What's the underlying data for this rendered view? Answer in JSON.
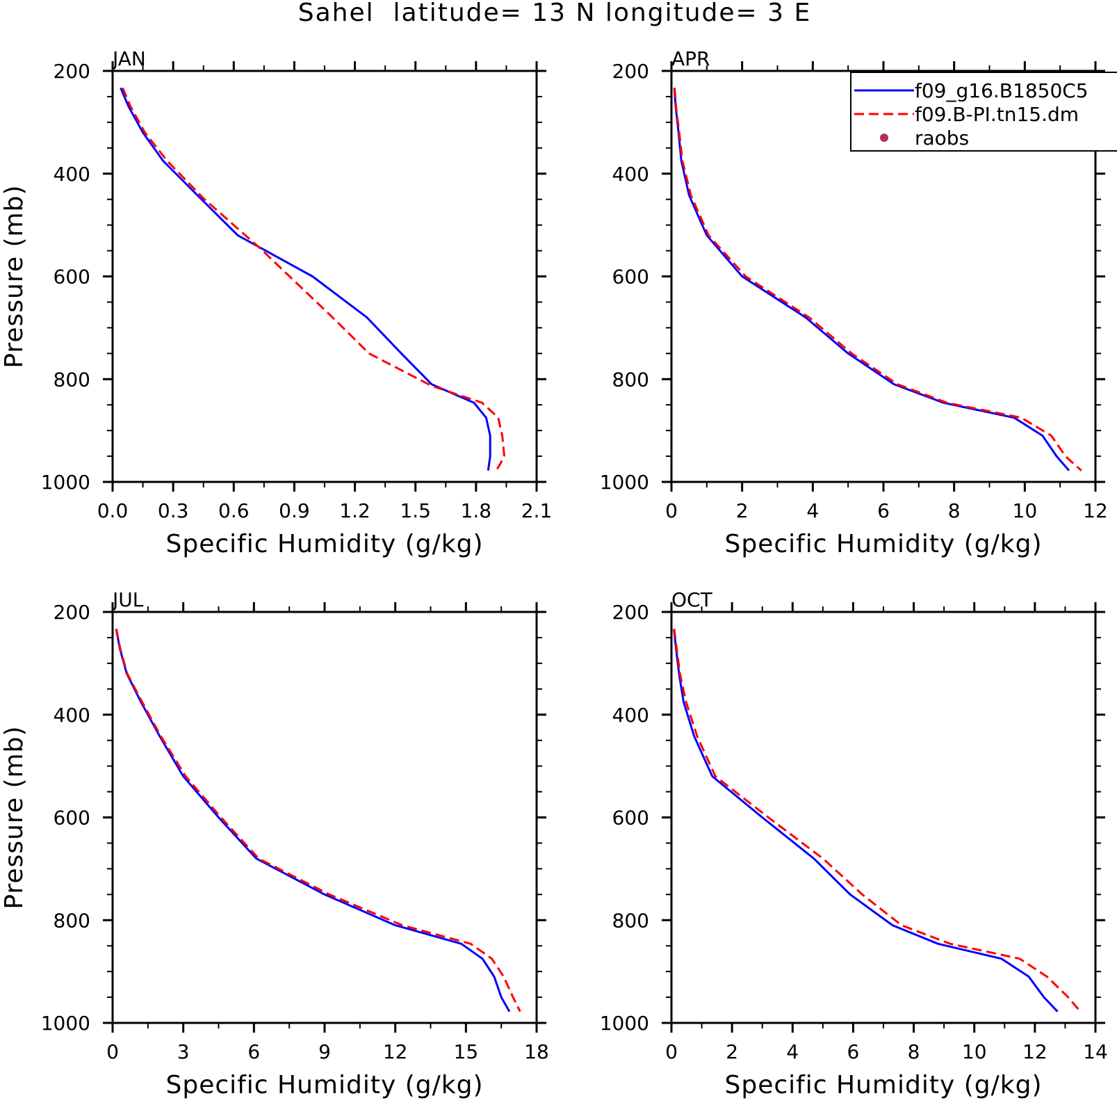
{
  "title": "Sahel  latitude= 13 N longitude= 3 E",
  "colors": {
    "model1": "#0000ff",
    "model2": "#ff0000",
    "raobs": "#b03060",
    "axis": "#000000"
  },
  "legend": {
    "entries": [
      {
        "label": "f09_g16.B1850C5",
        "style": "solid",
        "color": "#0000ff"
      },
      {
        "label": "f09.B-PI.tn15.dm",
        "style": "dashed",
        "color": "#ff0000"
      },
      {
        "label": "raobs",
        "style": "dot",
        "color": "#b03060"
      }
    ],
    "placement": "top-right of APR panel"
  },
  "chart_data": [
    {
      "type": "line",
      "title": "JAN",
      "xlabel": "Specific Humidity (g/kg)",
      "ylabel": "Pressure (mb)",
      "xlim": [
        0,
        2.1
      ],
      "ylim": [
        1000,
        200
      ],
      "xticks": [
        "0.0",
        "0.3",
        "0.6",
        "0.9",
        "1.2",
        "1.5",
        "1.8",
        "2.1"
      ],
      "xtick_values": [
        0,
        0.3,
        0.6,
        0.9,
        1.2,
        1.5,
        1.8,
        2.1
      ],
      "yticks": [
        "200",
        "400",
        "600",
        "800",
        "1000"
      ],
      "ytick_values": [
        200,
        400,
        600,
        800,
        1000
      ],
      "series": [
        {
          "name": "f09_g16.B1850C5",
          "style": "solid",
          "x": [
            0.04,
            0.08,
            0.15,
            0.25,
            0.42,
            0.62,
            0.99,
            1.26,
            1.43,
            1.58,
            1.79,
            1.85,
            1.87,
            1.87,
            1.86
          ],
          "y": [
            233,
            270,
            320,
            375,
            442,
            520,
            600,
            680,
            750,
            810,
            846,
            875,
            910,
            950,
            978
          ]
        },
        {
          "name": "f09.B-PI.tn15.dm",
          "style": "dashed",
          "x": [
            0.05,
            0.09,
            0.16,
            0.27,
            0.45,
            0.73,
            1.09,
            1.27,
            1.58,
            1.83,
            1.91,
            1.93,
            1.94,
            1.92,
            1.9
          ],
          "y": [
            233,
            270,
            320,
            375,
            448,
            545,
            680,
            750,
            813,
            846,
            875,
            910,
            950,
            965,
            978
          ]
        }
      ]
    },
    {
      "type": "line",
      "title": "APR",
      "xlabel": "Specific Humidity (g/kg)",
      "ylabel": "",
      "xlim": [
        0,
        12
      ],
      "ylim": [
        1000,
        200
      ],
      "xticks": [
        "0",
        "2",
        "4",
        "6",
        "8",
        "10",
        "12"
      ],
      "xtick_values": [
        0,
        2,
        4,
        6,
        8,
        10,
        12
      ],
      "yticks": [
        "200",
        "400",
        "600",
        "800",
        "1000"
      ],
      "ytick_values": [
        200,
        400,
        600,
        800,
        1000
      ],
      "series": [
        {
          "name": "f09_g16.B1850C5",
          "style": "solid",
          "x": [
            0.08,
            0.12,
            0.2,
            0.28,
            0.5,
            1.0,
            2.0,
            3.8,
            5.0,
            6.3,
            7.7,
            9.7,
            10.5,
            10.9,
            11.25
          ],
          "y": [
            233,
            270,
            320,
            375,
            442,
            520,
            600,
            680,
            750,
            810,
            846,
            875,
            910,
            950,
            978
          ]
        },
        {
          "name": "f09.B-PI.tn15.dm",
          "style": "dashed",
          "x": [
            0.09,
            0.13,
            0.22,
            0.31,
            0.55,
            1.05,
            2.1,
            3.9,
            5.1,
            6.4,
            7.8,
            9.9,
            10.75,
            11.15,
            11.6
          ],
          "y": [
            233,
            270,
            320,
            375,
            442,
            520,
            600,
            680,
            750,
            810,
            846,
            875,
            910,
            950,
            978
          ]
        }
      ]
    },
    {
      "type": "line",
      "title": "JUL",
      "xlabel": "Specific Humidity (g/kg)",
      "ylabel": "Pressure (mb)",
      "xlim": [
        0,
        18
      ],
      "ylim": [
        1000,
        200
      ],
      "xticks": [
        "0",
        "3",
        "6",
        "9",
        "12",
        "15",
        "18"
      ],
      "xtick_values": [
        0,
        3,
        6,
        9,
        12,
        15,
        18
      ],
      "yticks": [
        "200",
        "400",
        "600",
        "800",
        "1000"
      ],
      "ytick_values": [
        200,
        400,
        600,
        800,
        1000
      ],
      "series": [
        {
          "name": "f09_g16.B1850C5",
          "style": "solid",
          "x": [
            0.15,
            0.3,
            0.6,
            1.2,
            2.0,
            3.0,
            4.5,
            6.1,
            9.0,
            12.0,
            14.8,
            15.7,
            16.2,
            16.5,
            16.85
          ],
          "y": [
            233,
            270,
            320,
            375,
            442,
            520,
            600,
            680,
            750,
            810,
            846,
            875,
            910,
            950,
            978
          ]
        },
        {
          "name": "f09.B-PI.tn15.dm",
          "style": "dashed",
          "x": [
            0.16,
            0.32,
            0.62,
            1.25,
            2.05,
            3.1,
            4.6,
            6.2,
            9.2,
            12.3,
            15.2,
            16.1,
            16.6,
            17.0,
            17.3
          ],
          "y": [
            233,
            270,
            320,
            375,
            442,
            520,
            600,
            680,
            750,
            810,
            846,
            875,
            910,
            950,
            978
          ]
        }
      ]
    },
    {
      "type": "line",
      "title": "OCT",
      "xlabel": "Specific Humidity (g/kg)",
      "ylabel": "",
      "xlim": [
        0,
        14
      ],
      "ylim": [
        1000,
        200
      ],
      "xticks": [
        "0",
        "2",
        "4",
        "6",
        "8",
        "10",
        "12",
        "14"
      ],
      "xtick_values": [
        0,
        2,
        4,
        6,
        8,
        10,
        12,
        14
      ],
      "yticks": [
        "200",
        "400",
        "600",
        "800",
        "1000"
      ],
      "ytick_values": [
        200,
        400,
        600,
        800,
        1000
      ],
      "series": [
        {
          "name": "f09_g16.B1850C5",
          "style": "solid",
          "x": [
            0.08,
            0.15,
            0.25,
            0.4,
            0.75,
            1.35,
            3.0,
            4.7,
            5.9,
            7.3,
            8.8,
            10.9,
            11.8,
            12.3,
            12.75
          ],
          "y": [
            233,
            270,
            320,
            375,
            442,
            520,
            600,
            680,
            750,
            810,
            846,
            875,
            910,
            950,
            978
          ]
        },
        {
          "name": "f09.B-PI.tn15.dm",
          "style": "dashed",
          "x": [
            0.09,
            0.17,
            0.28,
            0.48,
            0.85,
            1.45,
            3.2,
            5.0,
            6.3,
            7.6,
            9.2,
            11.5,
            12.4,
            13.1,
            13.5
          ],
          "y": [
            233,
            270,
            320,
            375,
            442,
            520,
            600,
            680,
            750,
            810,
            846,
            875,
            910,
            950,
            978
          ]
        }
      ]
    }
  ]
}
